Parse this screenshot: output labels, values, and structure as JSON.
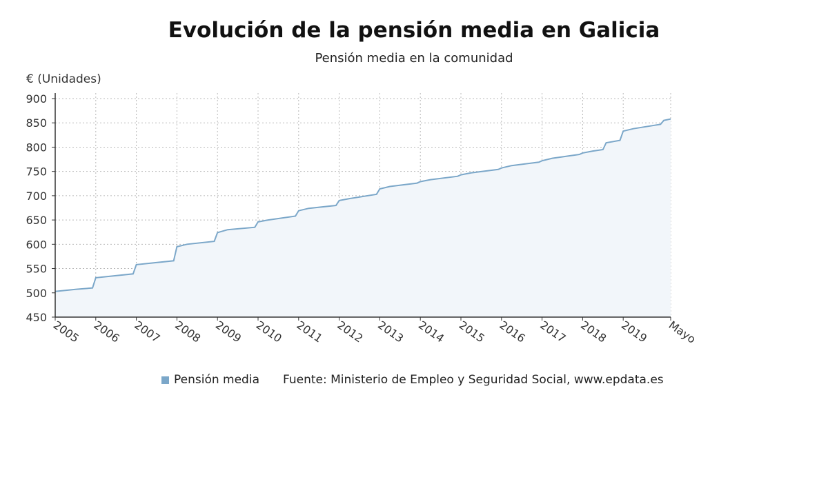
{
  "chart_data": {
    "type": "area",
    "title": "Evolución de la pensión media en Galicia",
    "subtitle": "Pensión media en la comunidad",
    "ylabel": "€ (Unidades)",
    "xlabel": "",
    "ylim": [
      450,
      900
    ],
    "yticks": [
      450,
      500,
      550,
      600,
      650,
      700,
      750,
      800,
      850,
      900
    ],
    "xtick_labels": [
      "2005",
      "2006",
      "2007",
      "2008",
      "2009",
      "2010",
      "2011",
      "2012",
      "2013",
      "2014",
      "2015",
      "2016",
      "2017",
      "2018",
      "2019",
      "Mayo"
    ],
    "grid": true,
    "legend_position": "bottom",
    "series": [
      {
        "name": "Pensión media",
        "x": [
          2005.0,
          2005.5,
          2005.92,
          2006.0,
          2006.92,
          2007.0,
          2007.92,
          2008.0,
          2008.25,
          2008.92,
          2009.0,
          2009.25,
          2009.92,
          2010.0,
          2010.25,
          2010.92,
          2011.0,
          2011.25,
          2011.92,
          2012.0,
          2012.25,
          2012.92,
          2013.0,
          2013.25,
          2013.92,
          2014.0,
          2014.25,
          2014.92,
          2015.0,
          2015.25,
          2015.92,
          2016.0,
          2016.25,
          2016.92,
          2017.0,
          2017.25,
          2017.92,
          2018.0,
          2018.25,
          2018.5,
          2018.58,
          2018.92,
          2019.0,
          2019.25,
          2019.92,
          2020.0,
          2020.17
        ],
        "values": [
          503,
          507,
          510,
          531,
          539,
          558,
          566,
          595,
          600,
          606,
          624,
          630,
          635,
          646,
          650,
          658,
          669,
          674,
          680,
          690,
          694,
          703,
          714,
          719,
          726,
          729,
          733,
          740,
          743,
          747,
          754,
          757,
          762,
          769,
          772,
          777,
          785,
          788,
          792,
          795,
          809,
          814,
          833,
          838,
          847,
          855,
          858
        ]
      }
    ],
    "colors": {
      "line": "#7ba7c9",
      "fill": "#f2f6fa",
      "grid": "#b8b8b8",
      "axis": "#333333"
    }
  },
  "legend": {
    "series_label": "Pensión media",
    "source": "Fuente: Ministerio de Empleo y Seguridad Social, www.epdata.es"
  }
}
